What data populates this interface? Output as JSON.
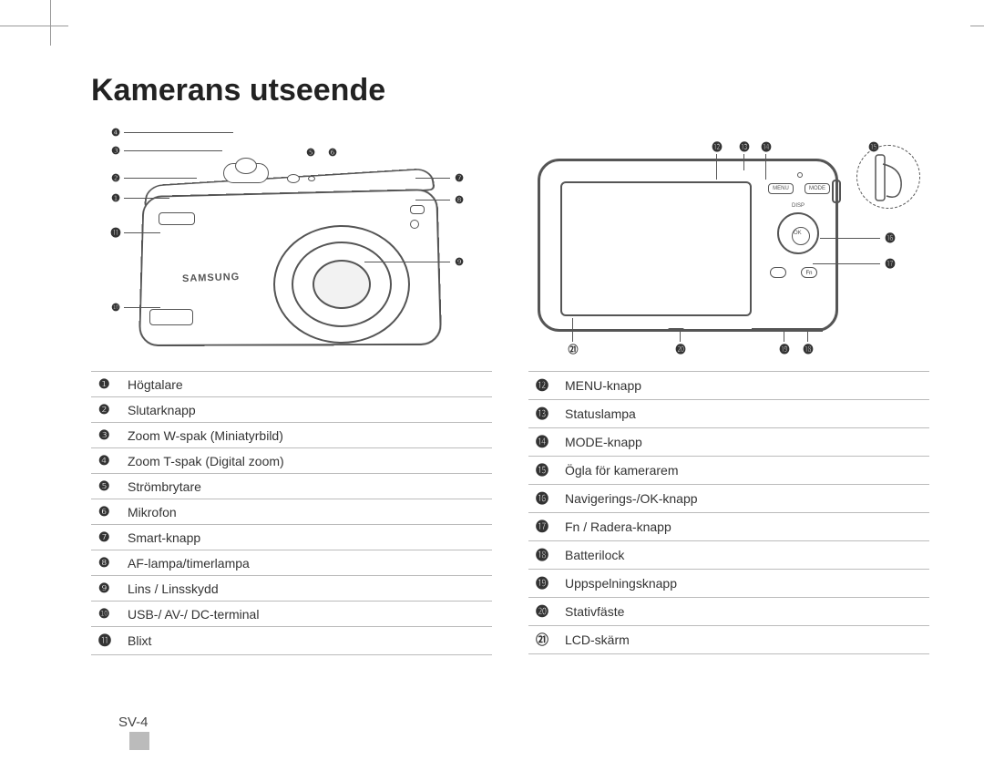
{
  "title": "Kamerans utseende",
  "page_number": "SV-4",
  "brand_logo": "SAMSUNG",
  "colors": {
    "text": "#333333",
    "line": "#555555",
    "rule": "#bbbbbb",
    "bg": "#ffffff",
    "tab": "#bbbbbb"
  },
  "front_callouts": [
    "❶",
    "❷",
    "❸",
    "❹",
    "❺",
    "❻",
    "❼",
    "❽",
    "❾",
    "❿",
    "⓫"
  ],
  "back_callouts": [
    "⓬",
    "⓭",
    "⓮",
    "⓯",
    "⓰",
    "⓱",
    "⓲",
    "⓳",
    "⓴",
    "㉑"
  ],
  "back_btn_labels": {
    "menu": "MENU",
    "mode": "MODE",
    "disp": "DISP",
    "ok": "OK",
    "fn": "Fn"
  },
  "left_table": [
    {
      "n": "❶",
      "label": "Högtalare"
    },
    {
      "n": "❷",
      "label": "Slutarknapp"
    },
    {
      "n": "❸",
      "label": "Zoom W-spak (Miniatyrbild)"
    },
    {
      "n": "❹",
      "label": "Zoom T-spak (Digital zoom)"
    },
    {
      "n": "❺",
      "label": "Strömbrytare"
    },
    {
      "n": "❻",
      "label": "Mikrofon"
    },
    {
      "n": "❼",
      "label": "Smart-knapp"
    },
    {
      "n": "❽",
      "label": "AF-lampa/timerlampa"
    },
    {
      "n": "❾",
      "label": "Lins / Linsskydd"
    },
    {
      "n": "❿",
      "label": "USB-/ AV-/ DC-terminal"
    },
    {
      "n": "⓫",
      "label": "Blixt"
    }
  ],
  "right_table": [
    {
      "n": "⓬",
      "label": "MENU-knapp"
    },
    {
      "n": "⓭",
      "label": "Statuslampa"
    },
    {
      "n": "⓮",
      "label": "MODE-knapp"
    },
    {
      "n": "⓯",
      "label": "Ögla för kamerarem"
    },
    {
      "n": "⓰",
      "label": "Navigerings-/OK-knapp"
    },
    {
      "n": "⓱",
      "label": "Fn / Radera-knapp"
    },
    {
      "n": "⓲",
      "label": "Batterilock"
    },
    {
      "n": "⓳",
      "label": "Uppspelningsknapp"
    },
    {
      "n": "⓴",
      "label": "Stativfäste"
    },
    {
      "n": "㉑",
      "label": "LCD-skärm"
    }
  ]
}
